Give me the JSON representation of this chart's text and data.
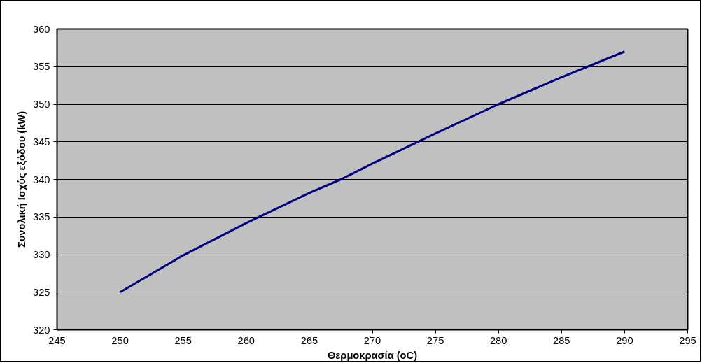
{
  "chart_data": {
    "type": "line",
    "xlabel": "Θερμοκρασία (oC)",
    "ylabel": "Συνολική Ισχύς εξόδου (kW)",
    "x": [
      250,
      255,
      260,
      265,
      267.5,
      270,
      275,
      280,
      285,
      290
    ],
    "series": [
      {
        "color": "#000080",
        "values": [
          325,
          329.9,
          334.2,
          338.2,
          340,
          342.1,
          346.1,
          350,
          353.6,
          357
        ]
      }
    ],
    "xlim": [
      245,
      295
    ],
    "xticks": [
      245,
      250,
      255,
      260,
      265,
      270,
      275,
      280,
      285,
      290,
      295
    ],
    "ylim": [
      320,
      360
    ],
    "yticks": [
      320,
      325,
      330,
      335,
      340,
      345,
      350,
      355,
      360
    ],
    "grid": "y",
    "marker": "none",
    "line_style": "solid"
  }
}
